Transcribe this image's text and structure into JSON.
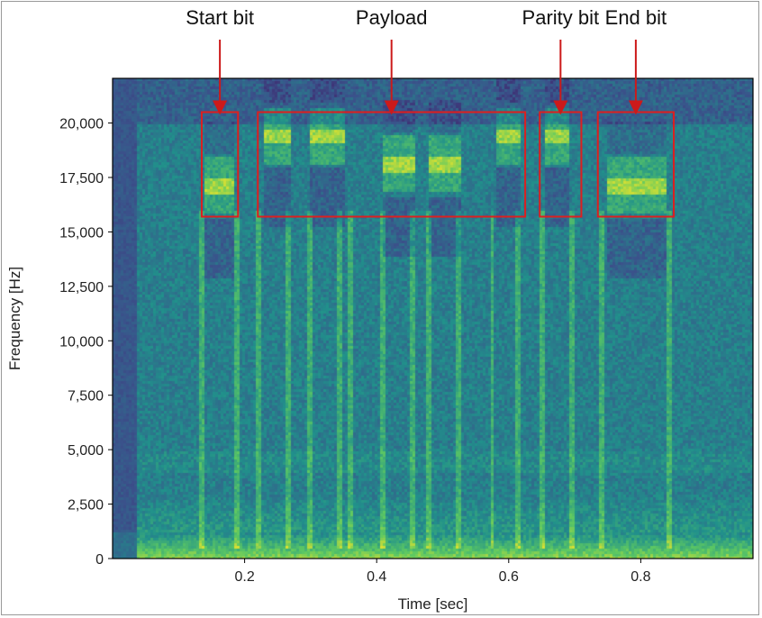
{
  "chart_data": {
    "type": "heatmap",
    "title": "",
    "xlabel": "Time [sec]",
    "ylabel": "Frequency [Hz]",
    "xlim": [
      0.0,
      0.97
    ],
    "ylim": [
      0,
      22050
    ],
    "x_ticks": [
      0.2,
      0.4,
      0.6,
      0.8
    ],
    "x_tick_labels": [
      "0.2",
      "0.4",
      "0.6",
      "0.8"
    ],
    "y_ticks": [
      0,
      2500,
      5000,
      7500,
      10000,
      12500,
      15000,
      17500,
      20000
    ],
    "y_tick_labels": [
      "0",
      "2,500",
      "5,000",
      "7,500",
      "10,000",
      "12,500",
      "15,000",
      "17,500",
      "20,000"
    ],
    "colormap": "viridis",
    "tone_bursts": [
      {
        "t0": 0.14,
        "t1": 0.185,
        "freq": 17100
      },
      {
        "t0": 0.23,
        "t1": 0.27,
        "freq": 19400
      },
      {
        "t0": 0.3,
        "t1": 0.35,
        "freq": 19400
      },
      {
        "t0": 0.41,
        "t1": 0.46,
        "freq": 18100
      },
      {
        "t0": 0.48,
        "t1": 0.53,
        "freq": 18100
      },
      {
        "t0": 0.58,
        "t1": 0.62,
        "freq": 19400
      },
      {
        "t0": 0.655,
        "t1": 0.69,
        "freq": 19400
      },
      {
        "t0": 0.75,
        "t1": 0.84,
        "freq": 17100
      }
    ],
    "clicks": [
      0.135,
      0.19,
      0.22,
      0.265,
      0.3,
      0.345,
      0.36,
      0.41,
      0.455,
      0.48,
      0.525,
      0.575,
      0.615,
      0.65,
      0.695,
      0.74,
      0.845
    ],
    "annotations": [
      {
        "label": "Start bit",
        "box_t": [
          0.135,
          0.19
        ],
        "box_f": [
          15700,
          20500
        ]
      },
      {
        "label": "Payload",
        "box_t": [
          0.22,
          0.625
        ],
        "box_f": [
          15700,
          20500
        ]
      },
      {
        "label": "Parity bit",
        "box_t": [
          0.647,
          0.71
        ],
        "box_f": [
          15700,
          20500
        ]
      },
      {
        "label": "End bit",
        "box_t": [
          0.735,
          0.85
        ],
        "box_f": [
          15700,
          20500
        ]
      }
    ],
    "colors": {
      "box": "#dd1f1f",
      "arrow": "#cc1a1a"
    }
  }
}
